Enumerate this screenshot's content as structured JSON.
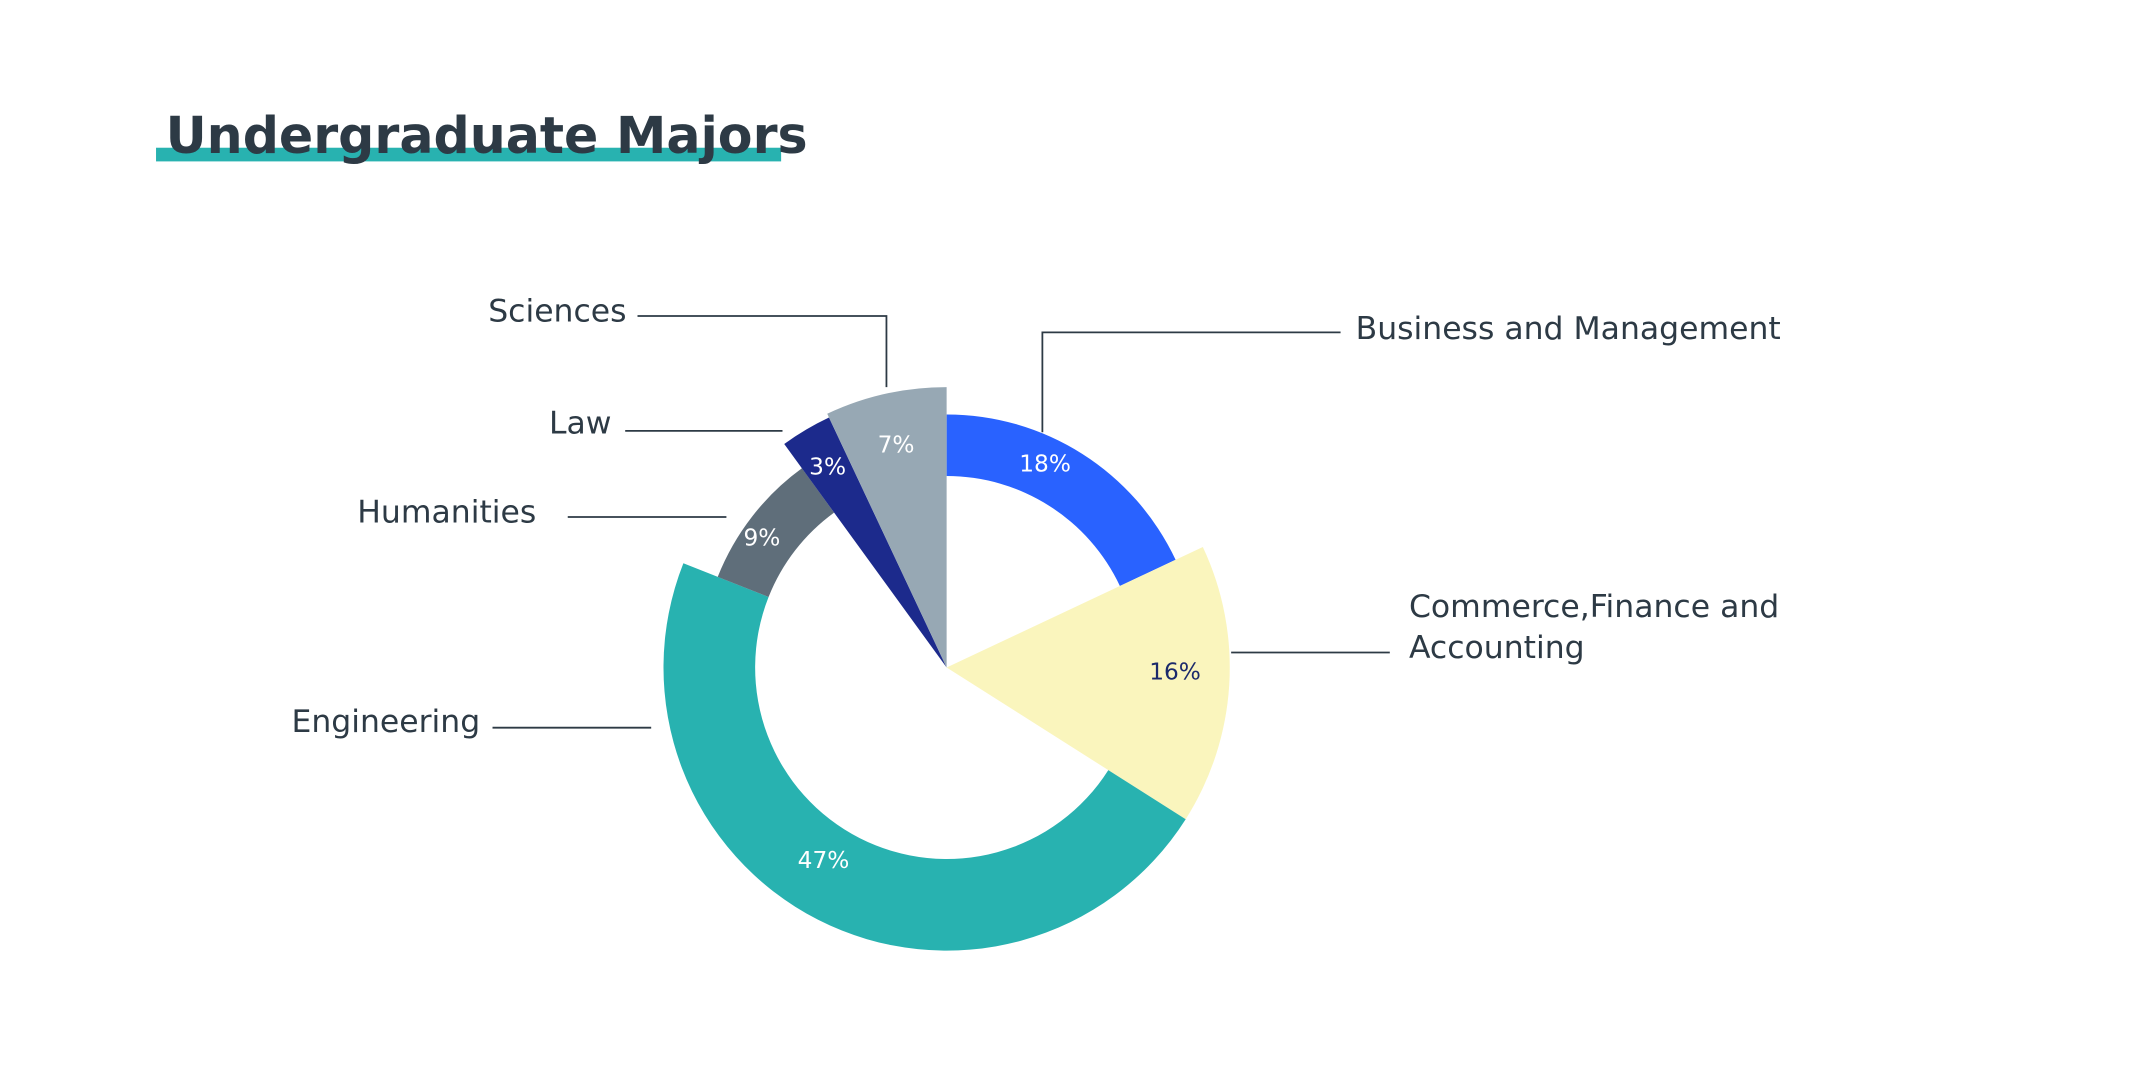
{
  "chart_data": {
    "type": "pie",
    "title": "Undergraduate Majors",
    "categories": [
      "Business and Management",
      "Commerce,Finance and\nAccounting",
      "Engineering",
      "Humanities",
      "Law",
      "Sciences"
    ],
    "values": [
      18,
      16,
      47,
      9,
      3,
      7
    ],
    "value_labels": [
      "18%",
      "16%",
      "47%",
      "9%",
      "3%",
      "7%"
    ],
    "colors": [
      "#2962ff",
      "#faf5bd",
      "#28b2b0",
      "#5f6e7a",
      "#1c2a8c",
      "#97a8b4"
    ]
  }
}
